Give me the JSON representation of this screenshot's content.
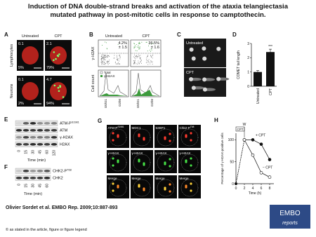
{
  "header": {
    "title": "Induction of DNA double-strand breaks and activation of the ataxia telangiectasia mutated pathway in post-mitotic cells in response to camptothecin."
  },
  "panels": {
    "a": {
      "label": "A",
      "columns": [
        "Untreated",
        "CPT"
      ],
      "rows": [
        "Lymphocytes",
        "Neurons"
      ],
      "images": [
        [
          "0.1",
          "5%"
        ],
        [
          "2.1",
          "79%"
        ],
        [
          "0.1",
          "2%"
        ],
        [
          "4.7",
          "94%"
        ]
      ]
    },
    "b": {
      "label": "B",
      "columns": [
        "Untreated",
        "CPT"
      ],
      "percents": [
        [
          "4.2%",
          "± 1.5"
        ],
        [
          "36.5%",
          "± 1.6"
        ]
      ],
      "y_label_top": "γ-H2AX",
      "y_label_bottom": "Cell count",
      "x_ticks": [
        "G0/G1",
        "G2/M",
        "G0/G1",
        "G2/M"
      ],
      "legend": [
        "Total",
        "γ-H2AX"
      ]
    },
    "c": {
      "label": "C",
      "images": [
        "Untreated",
        "CPT"
      ]
    },
    "e": {
      "label": "E",
      "bands": [
        {
          "base": "ATM-P",
          "sup": "S1981"
        },
        {
          "base": "ATM"
        },
        {
          "base": "γ-H2AX"
        },
        {
          "base": "H2AX"
        }
      ],
      "times": [
        "0",
        "15",
        "30",
        "45",
        "60",
        "120"
      ],
      "x_label": "Time (min)"
    },
    "f": {
      "label": "F",
      "bands": [
        {
          "base": "CHK2-P",
          "sup": "T68"
        },
        {
          "base": "CHK2"
        }
      ],
      "times": [
        "0",
        "15",
        "30",
        "45",
        "60"
      ],
      "x_label": "Time (min)"
    },
    "g": {
      "label": "G",
      "rows": [
        [
          {
            "base": "ATM-P",
            "sup": "S1981"
          },
          {
            "base": "MDC1"
          },
          {
            "base": "53BP1"
          },
          {
            "base": "Chk2-P",
            "sup": "T68"
          }
        ],
        [
          {
            "base": "γ-H2AX"
          },
          {
            "base": "γ-H2AX"
          },
          {
            "base": "γ-H2AX"
          },
          {
            "base": "γ-H2AX"
          }
        ],
        [
          {
            "base": "Merge"
          },
          {
            "base": "Merge"
          },
          {
            "base": "Merge"
          },
          {
            "base": "Merge"
          }
        ]
      ]
    }
  },
  "chart_data": [
    {
      "type": "bar",
      "label": "D",
      "y_label": "COMET tail length",
      "categories": [
        "Untreated",
        "CPT"
      ],
      "values": [
        1.0,
        2.4
      ],
      "errors": [
        0.1,
        0.2
      ],
      "annotation": "***",
      "color": "#111111",
      "ylim": [
        0,
        3
      ],
      "yticks": [
        0,
        1,
        2,
        3
      ]
    },
    {
      "type": "line",
      "label": "H",
      "y_label": "Percentage of γ-H2AX-positive cells",
      "x_label": "Time (h)",
      "annotations": [
        "CPT",
        "W"
      ],
      "x": [
        0,
        2,
        4,
        6,
        8
      ],
      "series": [
        {
          "name": "+ CPT",
          "color": "#111111",
          "values": [
            0,
            100,
            100,
            90,
            55
          ]
        },
        {
          "name": "− CPT",
          "color": "#ffffff",
          "values": [
            0,
            100,
            65,
            25,
            15
          ]
        }
      ],
      "xlim": [
        0,
        9
      ],
      "xticks": [
        0,
        2,
        4,
        6,
        8
      ],
      "ylim": [
        0,
        115
      ],
      "yticks": [
        0,
        50,
        100
      ]
    }
  ],
  "footer": {
    "citation": "Olivier Sordet et al. EMBO Rep. 2009;10:887-893",
    "copyright": "© as stated in the article, figure or figure legend",
    "logo": [
      "EMBO",
      "reports"
    ]
  }
}
